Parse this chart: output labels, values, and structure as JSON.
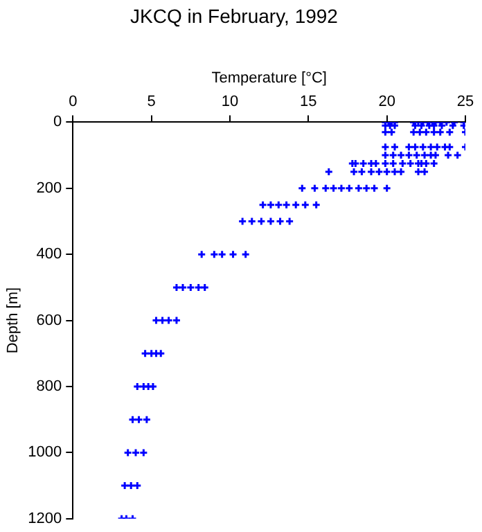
{
  "chart_data": {
    "type": "scatter",
    "title": "JKCQ in February, 1992",
    "xlabel": "Temperature [°C]",
    "ylabel": "Depth [m]",
    "xlim": [
      0,
      25
    ],
    "xticks": [
      0,
      5,
      10,
      15,
      20,
      25
    ],
    "ylim": [
      1200,
      0
    ],
    "yticks": [
      0,
      200,
      400,
      600,
      800,
      1000,
      1200
    ],
    "grid": false,
    "legend": false,
    "marker": "cross",
    "series": [
      {
        "color": "#0000ff",
        "x": [
          19.9,
          20.1,
          20.3,
          20.5,
          21.7,
          22.0,
          22.3,
          22.6,
          22.9,
          23.1,
          23.4,
          23.8,
          24.3,
          24.9,
          19.9,
          20.2,
          20.5,
          21.8,
          22.2,
          22.7,
          23.0,
          23.5,
          24.2,
          24.9,
          19.9,
          20.3,
          21.7,
          22.1,
          22.5,
          23.0,
          23.4,
          24.0,
          25.0,
          19.9,
          20.5,
          21.4,
          21.8,
          22.3,
          22.8,
          23.2,
          23.7,
          24.0,
          25.0,
          19.9,
          20.4,
          20.9,
          21.4,
          21.9,
          22.4,
          22.8,
          23.1,
          23.9,
          24.5,
          17.8,
          18.0,
          18.5,
          19.0,
          19.3,
          19.9,
          20.4,
          21.0,
          21.5,
          22.0,
          22.2,
          22.5,
          23.0,
          16.3,
          17.9,
          18.4,
          19.0,
          19.5,
          20.0,
          20.5,
          20.9,
          22.0,
          22.4,
          14.6,
          15.4,
          16.1,
          16.6,
          17.1,
          17.6,
          18.2,
          18.7,
          19.2,
          20.0,
          12.1,
          12.6,
          13.1,
          13.6,
          14.2,
          14.8,
          15.5,
          10.8,
          11.4,
          12.0,
          12.6,
          13.2,
          13.8,
          8.2,
          9.0,
          9.5,
          10.2,
          11.0,
          6.6,
          7.0,
          7.5,
          8.0,
          8.4,
          5.3,
          5.7,
          6.1,
          6.6,
          4.6,
          5.0,
          5.3,
          5.6,
          4.1,
          4.5,
          4.8,
          5.1,
          3.8,
          4.2,
          4.7,
          3.5,
          4.0,
          4.5,
          3.3,
          3.7,
          4.1,
          3.1,
          3.4,
          3.8
        ],
        "values": [
          0,
          0,
          0,
          0,
          0,
          0,
          0,
          0,
          0,
          0,
          0,
          0,
          0,
          0,
          10,
          10,
          10,
          10,
          10,
          10,
          10,
          10,
          10,
          10,
          30,
          30,
          30,
          30,
          30,
          30,
          30,
          30,
          30,
          75,
          75,
          75,
          75,
          75,
          75,
          75,
          75,
          75,
          75,
          100,
          100,
          100,
          100,
          100,
          100,
          100,
          100,
          100,
          100,
          125,
          125,
          125,
          125,
          125,
          125,
          125,
          125,
          125,
          125,
          125,
          125,
          125,
          150,
          150,
          150,
          150,
          150,
          150,
          150,
          150,
          150,
          150,
          200,
          200,
          200,
          200,
          200,
          200,
          200,
          200,
          200,
          200,
          250,
          250,
          250,
          250,
          250,
          250,
          250,
          300,
          300,
          300,
          300,
          300,
          300,
          400,
          400,
          400,
          400,
          400,
          500,
          500,
          500,
          500,
          500,
          600,
          600,
          600,
          600,
          700,
          700,
          700,
          700,
          800,
          800,
          800,
          800,
          900,
          900,
          900,
          1000,
          1000,
          1000,
          1100,
          1100,
          1100,
          1200,
          1200,
          1200
        ]
      }
    ]
  }
}
